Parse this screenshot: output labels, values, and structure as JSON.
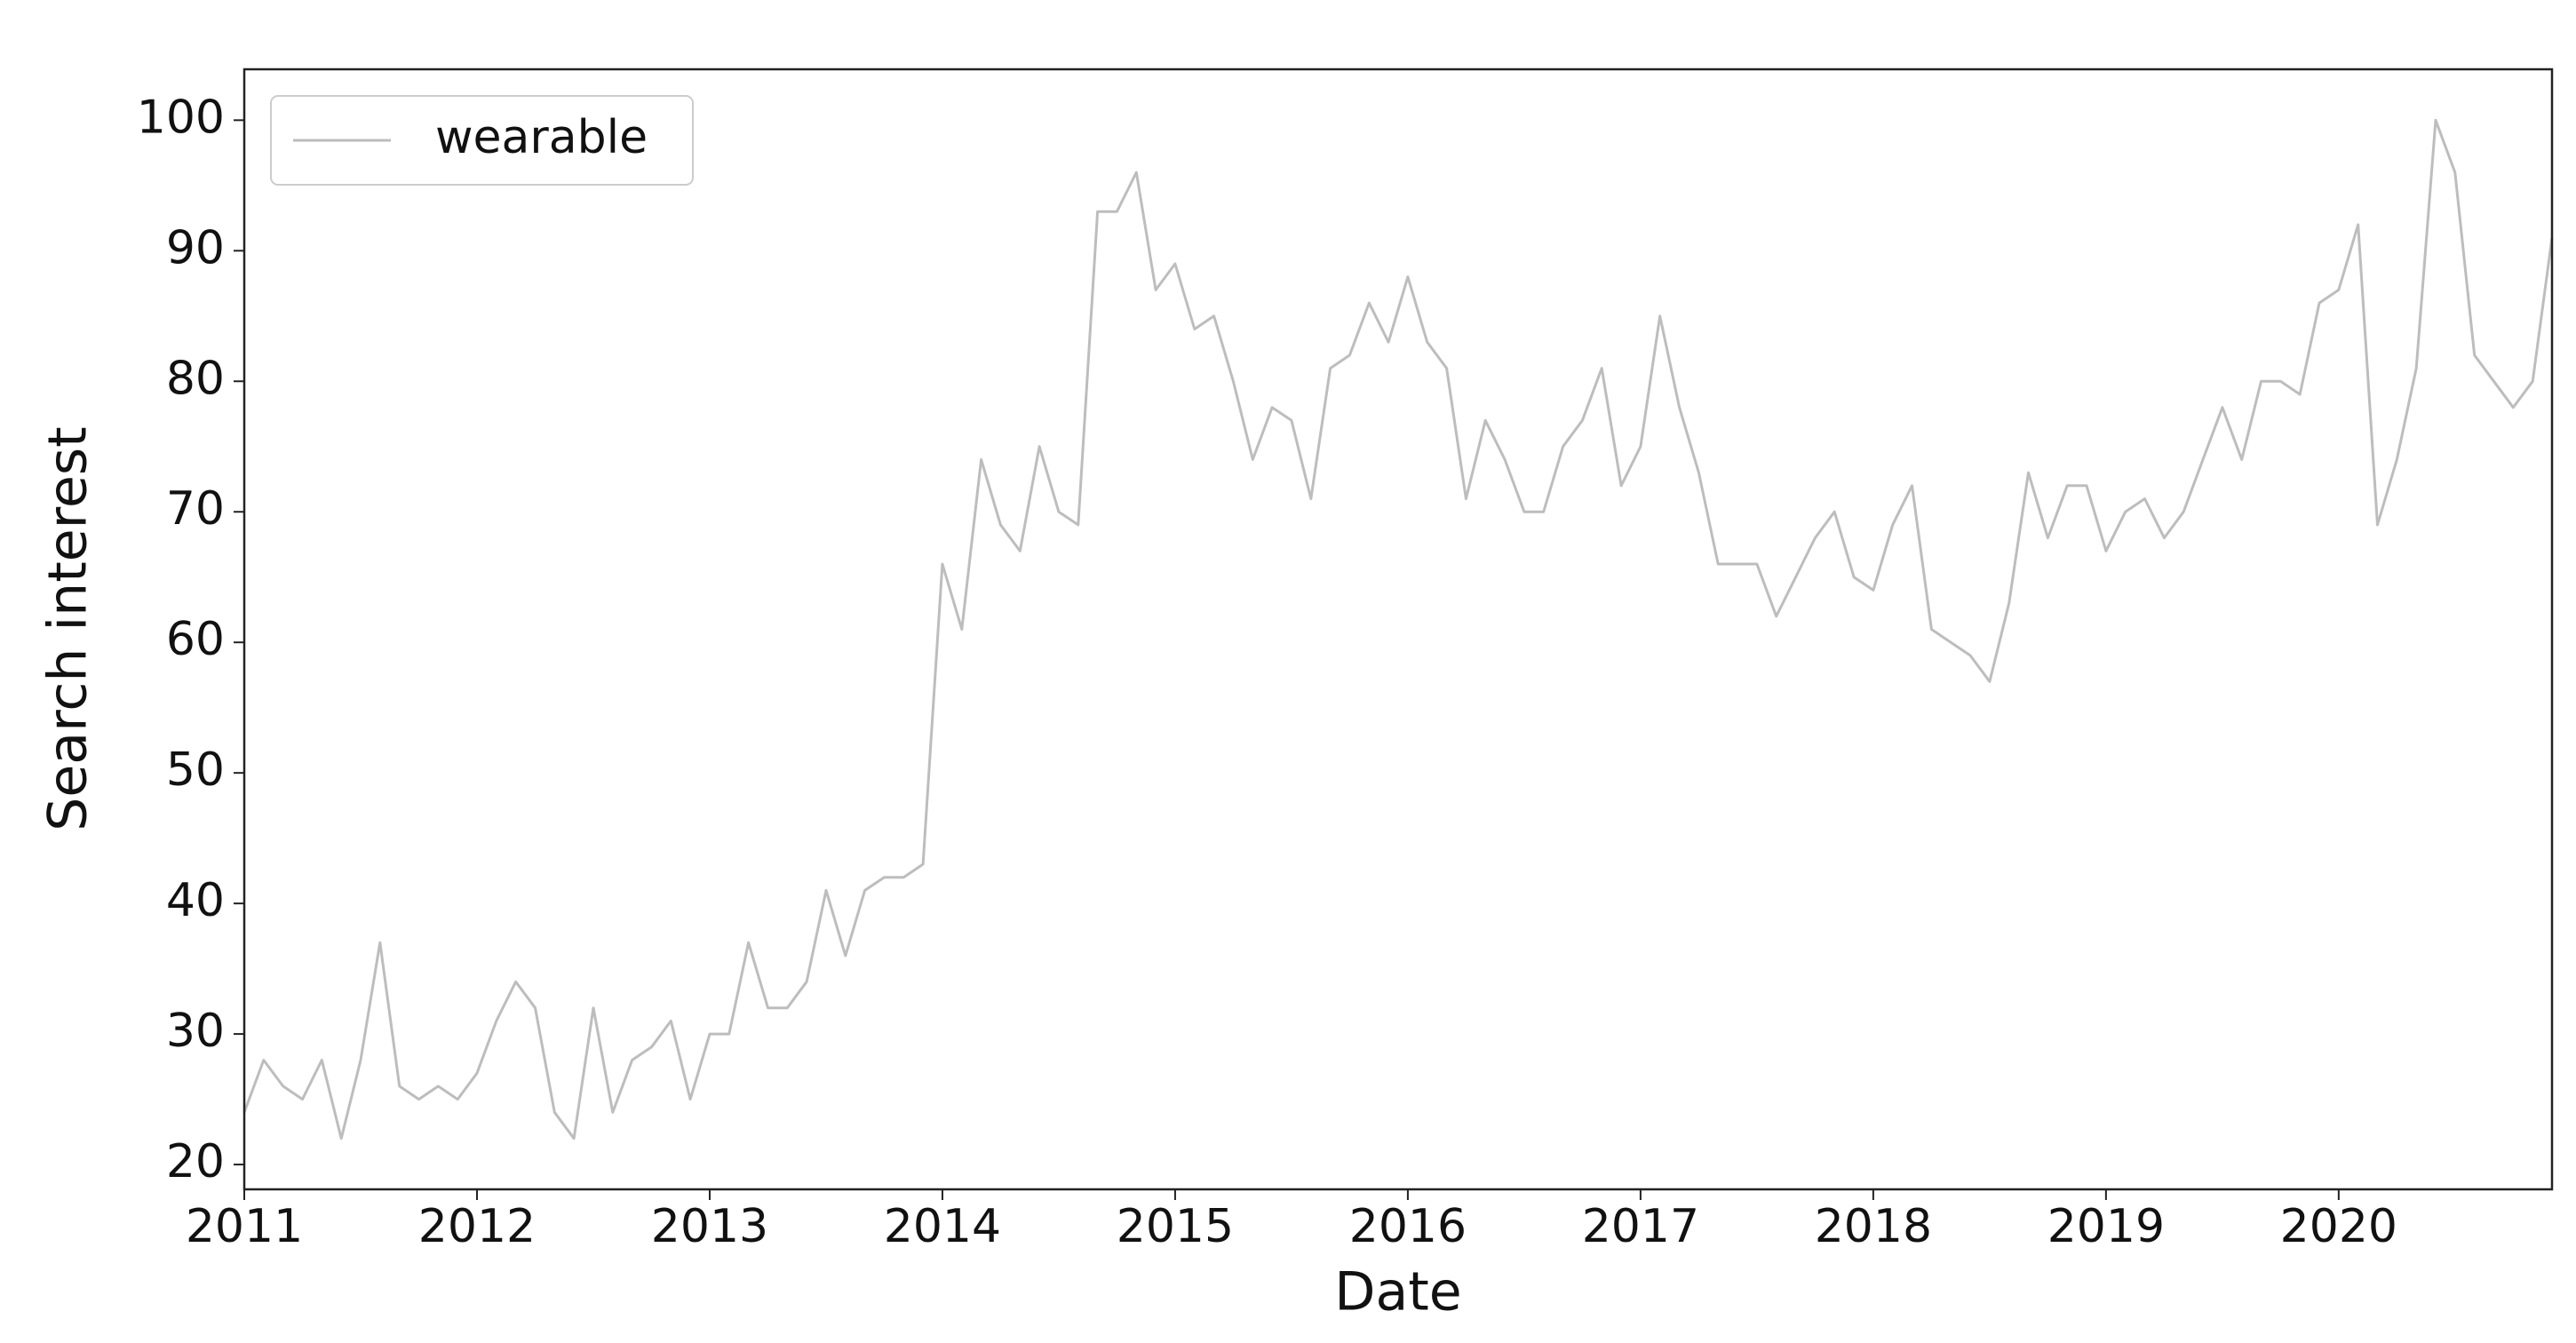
{
  "chart_data": {
    "type": "line",
    "xlabel": "Date",
    "ylabel": "Search interest",
    "categories": [
      "2011",
      null,
      null,
      null,
      null,
      null,
      null,
      null,
      null,
      null,
      null,
      null,
      "2012",
      null,
      null,
      null,
      null,
      null,
      null,
      null,
      null,
      null,
      null,
      null,
      "2013",
      null,
      null,
      null,
      null,
      null,
      null,
      null,
      null,
      null,
      null,
      null,
      "2014",
      null,
      null,
      null,
      null,
      null,
      null,
      null,
      null,
      null,
      null,
      null,
      "2015",
      null,
      null,
      null,
      null,
      null,
      null,
      null,
      null,
      null,
      null,
      null,
      "2016",
      null,
      null,
      null,
      null,
      null,
      null,
      null,
      null,
      null,
      null,
      null,
      "2017",
      null,
      null,
      null,
      null,
      null,
      null,
      null,
      null,
      null,
      null,
      null,
      "2018",
      null,
      null,
      null,
      null,
      null,
      null,
      null,
      null,
      null,
      null,
      null,
      "2019",
      null,
      null,
      null,
      null,
      null,
      null,
      null,
      null,
      null,
      null,
      null,
      "2020",
      null,
      null,
      null,
      null,
      null,
      null,
      null,
      null,
      null,
      null,
      null
    ],
    "series": [
      {
        "name": "wearable",
        "color": "#bdbdbd",
        "values": [
          24,
          28,
          26,
          25,
          28,
          22,
          28,
          37,
          26,
          25,
          26,
          25,
          27,
          31,
          34,
          32,
          24,
          22,
          32,
          24,
          28,
          29,
          31,
          25,
          30,
          30,
          37,
          32,
          32,
          34,
          41,
          36,
          41,
          42,
          42,
          43,
          66,
          61,
          74,
          69,
          67,
          75,
          70,
          69,
          93,
          93,
          96,
          87,
          89,
          84,
          85,
          80,
          74,
          78,
          77,
          71,
          81,
          82,
          86,
          83,
          88,
          83,
          81,
          71,
          77,
          74,
          70,
          70,
          75,
          77,
          81,
          72,
          75,
          85,
          78,
          73,
          66,
          66,
          66,
          62,
          65,
          68,
          70,
          65,
          64,
          69,
          72,
          61,
          60,
          59,
          57,
          63,
          73,
          68,
          72,
          72,
          67,
          70,
          71,
          68,
          70,
          74,
          78,
          74,
          80,
          80,
          79,
          86,
          87,
          92,
          69,
          74,
          81,
          100,
          96,
          82,
          80,
          78,
          80,
          91
        ]
      }
    ],
    "ylim": [
      18.1,
      103.9
    ],
    "yticks": [
      20,
      30,
      40,
      50,
      60,
      70,
      80,
      90,
      100
    ],
    "legend": "upper left",
    "grid": false
  }
}
